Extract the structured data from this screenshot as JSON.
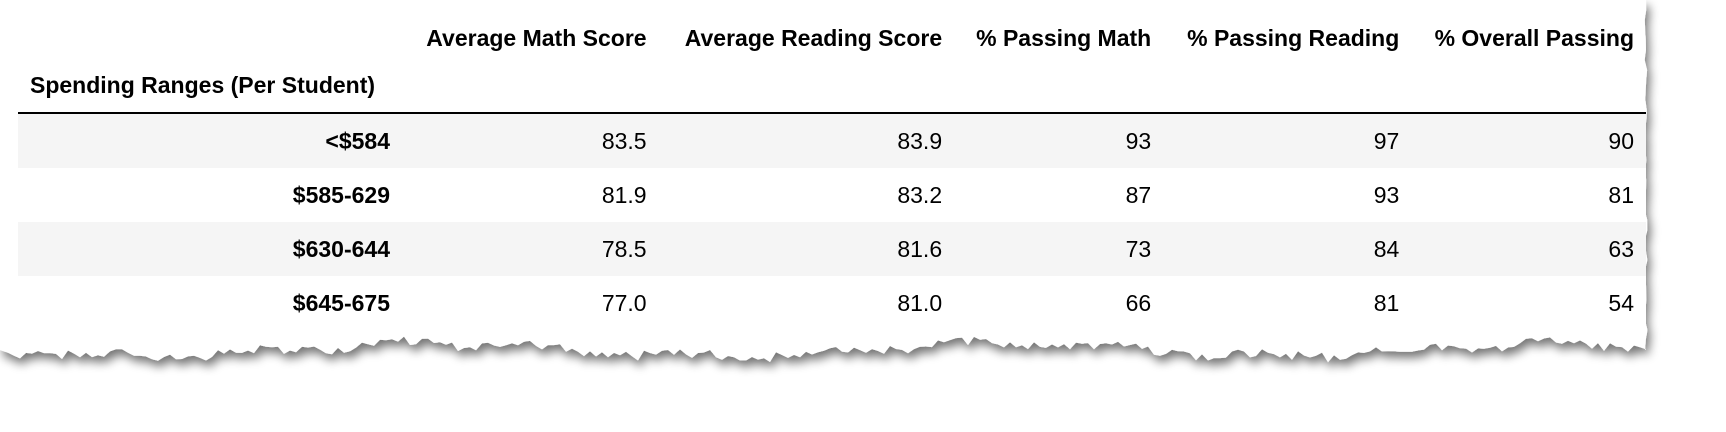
{
  "table": {
    "index_name": "Spending Ranges (Per Student)",
    "columns": [
      "Average Math Score",
      "Average Reading Score",
      "% Passing Math",
      "% Passing Reading",
      "% Overall Passing"
    ],
    "rows": [
      {
        "label": "<$584",
        "values": [
          "83.5",
          "83.9",
          "93",
          "97",
          "90"
        ]
      },
      {
        "label": "$585-629",
        "values": [
          "81.9",
          "83.2",
          "87",
          "93",
          "81"
        ]
      },
      {
        "label": "$630-644",
        "values": [
          "78.5",
          "81.6",
          "73",
          "84",
          "63"
        ]
      },
      {
        "label": "$645-675",
        "values": [
          "77.0",
          "81.0",
          "66",
          "81",
          "54"
        ]
      }
    ]
  },
  "colors": {
    "stripe": "#f5f5f5",
    "background": "#ffffff",
    "shadow": "#9a9a9a"
  }
}
